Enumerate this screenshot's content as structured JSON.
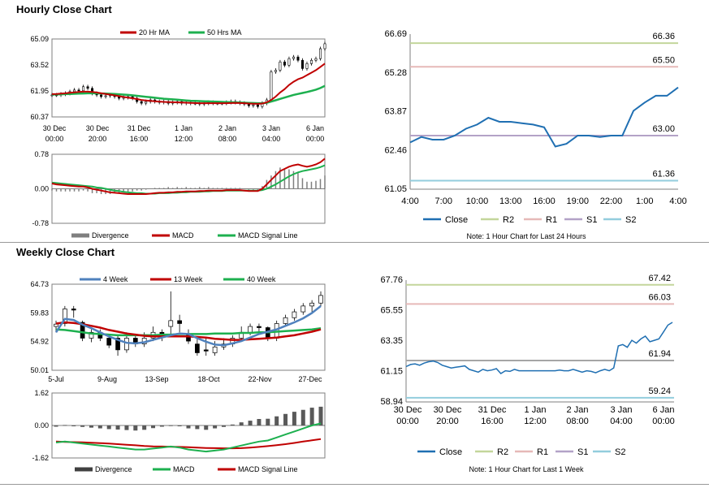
{
  "sections": {
    "hourly_title": "Hourly Close Chart",
    "weekly_title": "Weekly Close Chart"
  },
  "colors": {
    "ma20": "#c00000",
    "ma50": "#1db04f",
    "macd": "#c00000",
    "signal": "#1db04f",
    "divergence": "#7f7f7f",
    "close": "#1f6fb2",
    "r2": "#c3d69b",
    "r1": "#e6b9b8",
    "s1": "#b3a2c7",
    "s2": "#93cddd",
    "week4": "#4f81bd",
    "week13": "#c00000",
    "week40": "#1db04f",
    "pivot": "#a6a6a6"
  },
  "chart_data": [
    {
      "id": "hourly_price",
      "type": "candlestick",
      "legend": [
        "20 Hr MA",
        "50 Hrs MA"
      ],
      "yticks": [
        "65.09",
        "63.52",
        "61.95",
        "60.37"
      ],
      "ylim": [
        60.37,
        65.09
      ],
      "xticks": [
        [
          "30 Dec",
          "00:00"
        ],
        [
          "30 Dec",
          "20:00"
        ],
        [
          "31 Dec",
          "16:00"
        ],
        [
          "1 Jan",
          "12:00"
        ],
        [
          "2 Jan",
          "08:00"
        ],
        [
          "3 Jan",
          "04:00"
        ],
        [
          "6 Jan",
          "00:00"
        ]
      ],
      "close": [
        61.7,
        61.7,
        61.75,
        61.8,
        61.9,
        62.0,
        61.95,
        62.2,
        62.1,
        61.8,
        61.7,
        61.6,
        61.65,
        61.7,
        61.6,
        61.5,
        61.55,
        61.6,
        61.5,
        61.3,
        61.2,
        61.3,
        61.4,
        61.3,
        61.25,
        61.3,
        61.2,
        61.25,
        61.3,
        61.2,
        61.25,
        61.2,
        61.2,
        61.15,
        61.2,
        61.25,
        61.2,
        61.2,
        61.2,
        61.25,
        61.3,
        61.25,
        61.2,
        61.15,
        61.05,
        61.1,
        61.0,
        61.2,
        61.4,
        63.1,
        63.2,
        63.7,
        63.5,
        63.9,
        64.0,
        63.8,
        63.3,
        63.6,
        63.8,
        63.9,
        64.5,
        64.8
      ],
      "ma20": [
        61.75,
        61.76,
        61.78,
        61.8,
        61.83,
        61.86,
        61.88,
        61.9,
        61.9,
        61.88,
        61.85,
        61.8,
        61.76,
        61.72,
        61.68,
        61.63,
        61.58,
        61.54,
        61.5,
        61.45,
        61.4,
        61.37,
        61.34,
        61.32,
        61.3,
        61.28,
        61.27,
        61.26,
        61.25,
        61.24,
        61.23,
        61.22,
        61.21,
        61.2,
        61.2,
        61.2,
        61.2,
        61.2,
        61.2,
        61.2,
        61.21,
        61.22,
        61.21,
        61.2,
        61.18,
        61.17,
        61.16,
        61.18,
        61.25,
        61.4,
        61.6,
        61.85,
        62.05,
        62.3,
        62.5,
        62.65,
        62.75,
        62.9,
        63.05,
        63.2,
        63.4,
        63.6
      ],
      "ma50": [
        61.72,
        61.73,
        61.74,
        61.75,
        61.76,
        61.77,
        61.78,
        61.79,
        61.8,
        61.8,
        61.8,
        61.79,
        61.78,
        61.77,
        61.76,
        61.74,
        61.72,
        61.7,
        61.68,
        61.65,
        61.62,
        61.59,
        61.56,
        61.53,
        61.5,
        61.47,
        61.45,
        61.43,
        61.41,
        61.39,
        61.37,
        61.35,
        61.34,
        61.33,
        61.32,
        61.31,
        61.3,
        61.29,
        61.28,
        61.27,
        61.26,
        61.25,
        61.24,
        61.23,
        61.22,
        61.21,
        61.2,
        61.2,
        61.22,
        61.3,
        61.38,
        61.46,
        61.54,
        61.62,
        61.7,
        61.76,
        61.82,
        61.88,
        61.95,
        62.02,
        62.12,
        62.25
      ]
    },
    {
      "id": "hourly_macd",
      "type": "macd",
      "legend": [
        "Divergence",
        "MACD",
        "MACD Signal Line"
      ],
      "yticks": [
        "0.78",
        "0.00",
        "-0.78"
      ],
      "ylim": [
        -0.78,
        0.78
      ],
      "macd": [
        0.12,
        0.1,
        0.09,
        0.08,
        0.07,
        0.06,
        0.05,
        0.05,
        0.03,
        0.0,
        -0.02,
        -0.04,
        -0.06,
        -0.08,
        -0.09,
        -0.1,
        -0.11,
        -0.12,
        -0.12,
        -0.12,
        -0.12,
        -0.12,
        -0.11,
        -0.1,
        -0.09,
        -0.09,
        -0.08,
        -0.08,
        -0.07,
        -0.07,
        -0.06,
        -0.06,
        -0.06,
        -0.05,
        -0.05,
        -0.04,
        -0.04,
        -0.04,
        -0.04,
        -0.03,
        -0.03,
        -0.03,
        -0.03,
        -0.04,
        -0.05,
        -0.05,
        -0.05,
        0.0,
        0.1,
        0.2,
        0.3,
        0.4,
        0.45,
        0.5,
        0.53,
        0.55,
        0.52,
        0.5,
        0.52,
        0.55,
        0.6,
        0.68
      ],
      "signal": [
        0.14,
        0.13,
        0.12,
        0.11,
        0.1,
        0.09,
        0.08,
        0.07,
        0.06,
        0.05,
        0.03,
        0.02,
        0.0,
        -0.02,
        -0.04,
        -0.05,
        -0.07,
        -0.08,
        -0.09,
        -0.1,
        -0.1,
        -0.11,
        -0.11,
        -0.11,
        -0.1,
        -0.1,
        -0.1,
        -0.09,
        -0.09,
        -0.08,
        -0.08,
        -0.07,
        -0.07,
        -0.07,
        -0.06,
        -0.06,
        -0.05,
        -0.05,
        -0.05,
        -0.04,
        -0.04,
        -0.04,
        -0.04,
        -0.04,
        -0.04,
        -0.04,
        -0.04,
        -0.03,
        0.0,
        0.05,
        0.1,
        0.16,
        0.22,
        0.28,
        0.33,
        0.37,
        0.4,
        0.42,
        0.44,
        0.46,
        0.49,
        0.53
      ]
    },
    {
      "id": "hourly_pivot",
      "type": "line",
      "yticks": [
        "66.69",
        "65.28",
        "63.87",
        "62.46",
        "61.05"
      ],
      "ylim": [
        61.05,
        66.69
      ],
      "xticks": [
        "4:00",
        "7:00",
        "10:00",
        "13:00",
        "16:00",
        "19:00",
        "22:00",
        "1:00",
        "4:00"
      ],
      "levels": [
        {
          "name": "R2",
          "value": 66.36,
          "label": "66.36"
        },
        {
          "name": "R1",
          "value": 65.5,
          "label": "65.50"
        },
        {
          "name": "S1",
          "value": 63.0,
          "label": "63.00"
        },
        {
          "name": "S2",
          "value": 61.36,
          "label": "61.36"
        }
      ],
      "close": [
        62.75,
        62.95,
        62.85,
        62.85,
        63.0,
        63.25,
        63.4,
        63.65,
        63.5,
        63.5,
        63.45,
        63.4,
        63.3,
        62.6,
        62.7,
        63.0,
        63.0,
        62.95,
        63.0,
        63.0,
        63.9,
        64.2,
        64.45,
        64.45,
        64.75
      ],
      "legend": [
        "Close",
        "R2",
        "R1",
        "S1",
        "S2"
      ],
      "note": "Note: 1 Hour Chart for Last 24 Hours"
    },
    {
      "id": "weekly_price",
      "type": "candlestick",
      "legend": [
        "4 Week",
        "13 Week",
        "40 Week"
      ],
      "yticks": [
        "64.73",
        "59.83",
        "54.92",
        "50.01"
      ],
      "ylim": [
        50.01,
        64.73
      ],
      "xticks": [
        "5-Jul",
        "9-Aug",
        "13-Sep",
        "18-Oct",
        "22-Nov",
        "27-Dec"
      ],
      "candles": [
        [
          57.5,
          57.9,
          56.5,
          58.5
        ],
        [
          58.0,
          60.5,
          57.5,
          61.0
        ],
        [
          60.5,
          60.3,
          59.0,
          61.0
        ],
        [
          58.2,
          55.5,
          55.0,
          58.5
        ],
        [
          55.5,
          56.5,
          54.8,
          57.0
        ],
        [
          56.5,
          55.5,
          55.0,
          57.0
        ],
        [
          55.5,
          54.3,
          53.8,
          56.0
        ],
        [
          55.5,
          53.5,
          52.5,
          56.0
        ],
        [
          53.5,
          55.5,
          53.0,
          56.5
        ],
        [
          55.5,
          54.5,
          54.0,
          56.0
        ],
        [
          54.5,
          55.5,
          54.0,
          56.5
        ],
        [
          55.5,
          56.5,
          55.0,
          57.5
        ],
        [
          56.5,
          56.0,
          55.0,
          57.0
        ],
        [
          57.5,
          58.5,
          56.0,
          63.5
        ],
        [
          58.5,
          58.0,
          56.5,
          59.5
        ],
        [
          56.0,
          55.0,
          54.5,
          57.0
        ],
        [
          54.5,
          53.0,
          52.5,
          55.5
        ],
        [
          53.5,
          53.3,
          52.5,
          55.5
        ],
        [
          53.0,
          54.0,
          52.5,
          55.0
        ],
        [
          54.0,
          54.5,
          53.5,
          55.5
        ],
        [
          54.5,
          55.5,
          54.0,
          56.0
        ],
        [
          55.5,
          56.5,
          55.0,
          57.5
        ],
        [
          56.5,
          57.5,
          56.0,
          58.0
        ],
        [
          57.5,
          57.3,
          56.5,
          58.0
        ],
        [
          57.3,
          55.5,
          55.0,
          57.5
        ],
        [
          55.5,
          58.0,
          55.0,
          58.5
        ],
        [
          58.0,
          59.0,
          57.5,
          59.5
        ],
        [
          59.0,
          60.0,
          58.5,
          60.5
        ],
        [
          60.0,
          61.0,
          59.5,
          61.5
        ],
        [
          61.0,
          61.5,
          60.0,
          62.0
        ],
        [
          61.5,
          62.8,
          61.0,
          63.5
        ]
      ],
      "ma4": [
        56.5,
        58.8,
        58.6,
        57.8,
        57.2,
        56.5,
        55.8,
        55.2,
        54.7,
        54.6,
        54.8,
        55.2,
        55.6,
        56.0,
        56.3,
        56.2,
        55.5,
        54.9,
        54.4,
        54.3,
        54.6,
        55.0,
        55.6,
        56.2,
        56.6,
        57.0,
        57.6,
        58.2,
        58.9,
        59.8,
        61.0
      ],
      "ma13": [
        58.0,
        58.2,
        58.1,
        57.9,
        57.6,
        57.3,
        56.9,
        56.6,
        56.3,
        56.1,
        55.9,
        55.8,
        55.8,
        55.8,
        55.8,
        55.8,
        55.7,
        55.6,
        55.4,
        55.3,
        55.2,
        55.2,
        55.3,
        55.4,
        55.5,
        55.6,
        55.8,
        56.0,
        56.3,
        56.6,
        57.0
      ],
      "ma40": [
        57.0,
        56.9,
        56.7,
        56.5,
        56.3,
        56.2,
        56.1,
        56.0,
        56.0,
        56.0,
        56.0,
        56.0,
        56.1,
        56.1,
        56.2,
        56.2,
        56.2,
        56.2,
        56.3,
        56.3,
        56.3,
        56.4,
        56.4,
        56.5,
        56.5,
        56.6,
        56.7,
        56.8,
        56.9,
        57.0,
        57.2
      ]
    },
    {
      "id": "weekly_macd",
      "type": "macd",
      "legend": [
        "Divergence",
        "MACD",
        "MACD Signal Line"
      ],
      "yticks": [
        "1.62",
        "0.00",
        "-1.62"
      ],
      "ylim": [
        -1.62,
        1.62
      ],
      "macd": [
        -0.85,
        -0.8,
        -0.85,
        -0.9,
        -0.95,
        -1.0,
        -1.05,
        -1.1,
        -1.15,
        -1.2,
        -1.2,
        -1.15,
        -1.1,
        -1.05,
        -1.1,
        -1.2,
        -1.25,
        -1.3,
        -1.25,
        -1.2,
        -1.1,
        -1.0,
        -0.9,
        -0.8,
        -0.75,
        -0.6,
        -0.45,
        -0.3,
        -0.15,
        0.0,
        0.1
      ],
      "signal": [
        -0.8,
        -0.82,
        -0.83,
        -0.84,
        -0.86,
        -0.88,
        -0.9,
        -0.93,
        -0.96,
        -0.99,
        -1.02,
        -1.04,
        -1.05,
        -1.06,
        -1.07,
        -1.08,
        -1.1,
        -1.12,
        -1.13,
        -1.14,
        -1.14,
        -1.13,
        -1.1,
        -1.07,
        -1.03,
        -0.98,
        -0.93,
        -0.87,
        -0.8,
        -0.74,
        -0.68
      ]
    },
    {
      "id": "weekly_pivot",
      "type": "line",
      "yticks": [
        "67.76",
        "65.55",
        "63.35",
        "61.15",
        "58.94"
      ],
      "ylim": [
        58.94,
        67.76
      ],
      "xticks": [
        [
          "30 Dec",
          "00:00"
        ],
        [
          "30 Dec",
          "20:00"
        ],
        [
          "31 Dec",
          "16:00"
        ],
        [
          "1 Jan",
          "12:00"
        ],
        [
          "2 Jan",
          "08:00"
        ],
        [
          "3 Jan",
          "04:00"
        ],
        [
          "6 Jan",
          "00:00"
        ]
      ],
      "levels": [
        {
          "name": "R2",
          "value": 67.42,
          "label": "67.42"
        },
        {
          "name": "R1",
          "value": 66.03,
          "label": "66.03"
        },
        {
          "name": "S1",
          "value": 61.94,
          "label": "61.94"
        },
        {
          "name": "S2",
          "value": 59.24,
          "label": "59.24"
        }
      ],
      "close": [
        61.5,
        61.65,
        61.7,
        61.6,
        61.75,
        61.85,
        61.9,
        61.8,
        61.6,
        61.5,
        61.4,
        61.45,
        61.5,
        61.55,
        61.3,
        61.2,
        61.1,
        61.3,
        61.2,
        61.25,
        61.35,
        61.0,
        61.2,
        61.15,
        61.3,
        61.2,
        61.2,
        61.2,
        61.2,
        61.2,
        61.2,
        61.2,
        61.2,
        61.2,
        61.25,
        61.2,
        61.2,
        61.3,
        61.2,
        61.1,
        61.2,
        61.15,
        61.05,
        61.2,
        61.3,
        61.2,
        61.4,
        63.0,
        63.1,
        62.9,
        63.4,
        63.2,
        63.5,
        63.7,
        63.3,
        63.4,
        63.5,
        64.0,
        64.5,
        64.7
      ],
      "legend": [
        "Close",
        "R2",
        "R1",
        "S1",
        "S2"
      ],
      "note": "Note: 1 Hour Chart for Last 1 Week"
    }
  ]
}
